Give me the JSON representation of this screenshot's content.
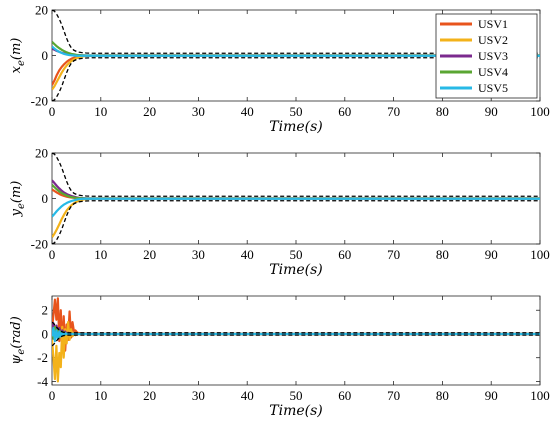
{
  "chart_data": [
    {
      "type": "line",
      "xlabel": "Time(s)",
      "ylabel": "x_e(m)",
      "ylabel_main": "x",
      "ylabel_sub": "e",
      "ylabel_unit": "(m)",
      "xlim": [
        0,
        100
      ],
      "ylim": [
        -20,
        20
      ],
      "xticks": [
        0,
        10,
        20,
        30,
        40,
        50,
        60,
        70,
        80,
        90,
        100
      ],
      "yticks": [
        -20,
        0,
        20
      ],
      "legend": "top-right",
      "x": [
        0,
        0.5,
        1,
        1.5,
        2,
        2.5,
        3,
        3.5,
        4,
        4.5,
        5,
        5.5,
        6,
        6.5,
        7,
        8,
        10,
        20,
        40,
        60,
        80,
        100
      ],
      "series": [
        {
          "name": "USV1",
          "color": "#e8541c",
          "values": [
            -13,
            -11,
            -8.5,
            -6.5,
            -5,
            -3.8,
            -2.8,
            -2,
            -1.4,
            -1,
            -0.7,
            -0.5,
            -0.4,
            -0.3,
            -0.2,
            -0.1,
            0,
            0,
            0,
            0,
            0,
            0
          ]
        },
        {
          "name": "USV2",
          "color": "#f3b21a",
          "values": [
            -15,
            -13.5,
            -11.5,
            -9.5,
            -7.5,
            -5.8,
            -4.4,
            -3.3,
            -2.4,
            -1.7,
            -1.2,
            -0.8,
            -0.5,
            -0.3,
            -0.2,
            -0.1,
            0,
            0,
            0,
            0,
            0,
            0
          ]
        },
        {
          "name": "USV3",
          "color": "#7b2a8e",
          "values": [
            3,
            2.5,
            2,
            1.6,
            1.2,
            0.9,
            0.7,
            0.5,
            0.35,
            0.25,
            0.15,
            0.1,
            0.05,
            0,
            0,
            0,
            0,
            0,
            0,
            0,
            0,
            0
          ]
        },
        {
          "name": "USV4",
          "color": "#5aa632",
          "values": [
            6,
            5,
            4,
            3.2,
            2.5,
            1.9,
            1.4,
            1,
            0.7,
            0.5,
            0.3,
            0.2,
            0.1,
            0.05,
            0,
            0,
            0,
            0,
            0,
            0,
            0,
            0
          ]
        },
        {
          "name": "USV5",
          "color": "#27b9e6",
          "values": [
            4,
            3,
            2.2,
            1.6,
            1.1,
            0.7,
            0.4,
            0.2,
            0.1,
            0,
            -0.1,
            -0.1,
            -0.1,
            -0.1,
            -0.1,
            -0.1,
            -0.1,
            -0.1,
            -0.1,
            -0.1,
            -0.1,
            -0.1
          ]
        }
      ],
      "bounds": [
        {
          "color": "#000000",
          "values": [
            20,
            19.5,
            18,
            16,
            13.5,
            10.5,
            7.5,
            5,
            3.2,
            2.3,
            1.8,
            1.5,
            1.3,
            1.2,
            1.1,
            1,
            1,
            1,
            1,
            1,
            1,
            1
          ]
        },
        {
          "color": "#000000",
          "values": [
            -20,
            -19.5,
            -18,
            -16,
            -13.5,
            -10.5,
            -7.5,
            -5,
            -3.2,
            -2.3,
            -1.8,
            -1.5,
            -1.3,
            -1.2,
            -1.1,
            -1,
            -1,
            -1,
            -1,
            -1,
            -1,
            -1
          ]
        }
      ]
    },
    {
      "type": "line",
      "xlabel": "Time(s)",
      "ylabel": "y_e(m)",
      "ylabel_main": "y",
      "ylabel_sub": "e",
      "ylabel_unit": "(m)",
      "xlim": [
        0,
        100
      ],
      "ylim": [
        -20,
        20
      ],
      "xticks": [
        0,
        10,
        20,
        30,
        40,
        50,
        60,
        70,
        80,
        90,
        100
      ],
      "yticks": [
        -20,
        0,
        20
      ],
      "x": [
        0,
        0.5,
        1,
        1.5,
        2,
        2.5,
        3,
        3.5,
        4,
        4.5,
        5,
        5.5,
        6,
        6.5,
        7,
        8,
        10,
        20,
        40,
        60,
        80,
        100
      ],
      "series": [
        {
          "name": "USV1",
          "color": "#e8541c",
          "values": [
            4,
            3.3,
            2.6,
            2,
            1.5,
            1.1,
            0.8,
            0.6,
            0.4,
            0.3,
            0.2,
            0.1,
            0.05,
            0,
            0,
            0,
            0,
            0,
            0,
            0,
            0,
            0
          ]
        },
        {
          "name": "USV2",
          "color": "#f3b21a",
          "values": [
            -17,
            -15.5,
            -13.5,
            -11.3,
            -9,
            -7,
            -5.3,
            -4,
            -2.9,
            -2.1,
            -1.5,
            -1,
            -0.7,
            -0.4,
            -0.3,
            -0.1,
            0,
            0,
            0,
            0,
            0,
            0
          ]
        },
        {
          "name": "USV3",
          "color": "#7b2a8e",
          "values": [
            8,
            6.8,
            5.5,
            4.4,
            3.4,
            2.6,
            2,
            1.5,
            1.1,
            0.8,
            0.5,
            0.3,
            0.2,
            0.1,
            0,
            0,
            0,
            0,
            0,
            0,
            0,
            0
          ]
        },
        {
          "name": "USV4",
          "color": "#5aa632",
          "values": [
            6,
            5,
            4,
            3.1,
            2.4,
            1.8,
            1.3,
            0.9,
            0.6,
            0.4,
            0.3,
            0.2,
            0.1,
            0.05,
            0,
            0,
            0,
            0,
            0,
            0,
            0,
            0
          ]
        },
        {
          "name": "USV5",
          "color": "#27b9e6",
          "values": [
            -8,
            -6.8,
            -5.5,
            -4.4,
            -3.4,
            -2.6,
            -2,
            -1.5,
            -1.1,
            -0.8,
            -0.5,
            -0.3,
            -0.2,
            -0.1,
            -0.1,
            -0.1,
            -0.1,
            -0.1,
            -0.1,
            -0.1,
            -0.1,
            -0.1
          ]
        }
      ],
      "bounds": [
        {
          "color": "#000000",
          "values": [
            20,
            19.5,
            18,
            16,
            13.5,
            10.5,
            7.5,
            5,
            3.2,
            2.3,
            1.8,
            1.5,
            1.3,
            1.2,
            1.1,
            1,
            1,
            1,
            1,
            1,
            1,
            1
          ]
        },
        {
          "color": "#000000",
          "values": [
            -20,
            -19.5,
            -18,
            -16,
            -13.5,
            -10.5,
            -7.5,
            -5,
            -3.2,
            -2.3,
            -1.8,
            -1.5,
            -1.3,
            -1.2,
            -1.1,
            -1,
            -1,
            -1,
            -1,
            -1,
            -1,
            -1
          ]
        }
      ]
    },
    {
      "type": "line",
      "xlabel": "Time(s)",
      "ylabel": "ψ_e(rad)",
      "ylabel_main": "ψ",
      "ylabel_sub": "e",
      "ylabel_unit": "(rad)",
      "xlim": [
        0,
        100
      ],
      "ylim": [
        -4.3,
        3.2
      ],
      "xticks": [
        0,
        10,
        20,
        30,
        40,
        50,
        60,
        70,
        80,
        90,
        100
      ],
      "yticks": [
        -4,
        -2,
        0,
        2
      ],
      "x": [
        0,
        0.3,
        0.6,
        0.9,
        1.2,
        1.5,
        1.8,
        2.1,
        2.4,
        2.7,
        3,
        3.3,
        3.6,
        3.9,
        4.2,
        4.5,
        4.8,
        5.2,
        6,
        8,
        10,
        20,
        40,
        60,
        80,
        100
      ],
      "series": [
        {
          "name": "USV1",
          "color": "#e8541c",
          "values": [
            0.5,
            1.6,
            2.9,
            1.2,
            3.0,
            -0.6,
            2.0,
            -1.2,
            1.5,
            -1.4,
            0.8,
            -0.5,
            1.9,
            -0.3,
            1.0,
            0.2,
            0.3,
            0.1,
            0.05,
            0,
            0,
            0,
            0,
            0,
            0,
            0
          ]
        },
        {
          "name": "USV2",
          "color": "#f3b21a",
          "values": [
            -0.5,
            -2.0,
            -3.8,
            -1.0,
            -4.0,
            -1.6,
            -2.8,
            0.6,
            -2.0,
            0.4,
            -0.8,
            1.0,
            -0.5,
            0.4,
            -0.2,
            0.1,
            -0.1,
            0,
            0,
            0,
            0,
            0,
            0,
            0,
            0,
            0
          ]
        },
        {
          "name": "USV3",
          "color": "#7b2a8e",
          "values": [
            0.5,
            0.9,
            0.4,
            0.7,
            0.2,
            0.5,
            0.1,
            0.3,
            0.0,
            0.2,
            0.0,
            0.1,
            0.05,
            0,
            0,
            0,
            0,
            0,
            0,
            0,
            0,
            0,
            0,
            0,
            0,
            0
          ]
        },
        {
          "name": "USV4",
          "color": "#5aa632",
          "values": [
            0.3,
            -0.4,
            0.6,
            -0.2,
            0.4,
            -0.3,
            0.2,
            -0.1,
            0.15,
            -0.05,
            0.05,
            0,
            0,
            0,
            0,
            0,
            0,
            0,
            0,
            0,
            0,
            0,
            0,
            0,
            0,
            0
          ]
        },
        {
          "name": "USV5",
          "color": "#27b9e6",
          "values": [
            -0.2,
            0.5,
            -0.6,
            0.3,
            -0.4,
            0.2,
            -0.2,
            0.1,
            -0.1,
            0.05,
            0,
            0,
            0,
            0,
            0,
            0,
            0,
            0,
            0,
            0,
            0,
            0,
            0,
            0,
            0,
            0
          ]
        }
      ],
      "bounds": [
        {
          "color": "#000000",
          "values": [
            1.0,
            0.9,
            0.75,
            0.6,
            0.45,
            0.33,
            0.24,
            0.18,
            0.14,
            0.12,
            0.11,
            0.1,
            0.1,
            0.1,
            0.1,
            0.1,
            0.1,
            0.1,
            0.1,
            0.1,
            0.1,
            0.1,
            0.1,
            0.1,
            0.1,
            0.1
          ]
        },
        {
          "color": "#000000",
          "values": [
            -1.0,
            -0.9,
            -0.75,
            -0.6,
            -0.45,
            -0.33,
            -0.24,
            -0.18,
            -0.14,
            -0.12,
            -0.11,
            -0.1,
            -0.1,
            -0.1,
            -0.1,
            -0.1,
            -0.1,
            -0.1,
            -0.1,
            -0.1,
            -0.1,
            -0.1,
            -0.1,
            -0.1,
            -0.1,
            -0.1
          ]
        }
      ]
    }
  ]
}
